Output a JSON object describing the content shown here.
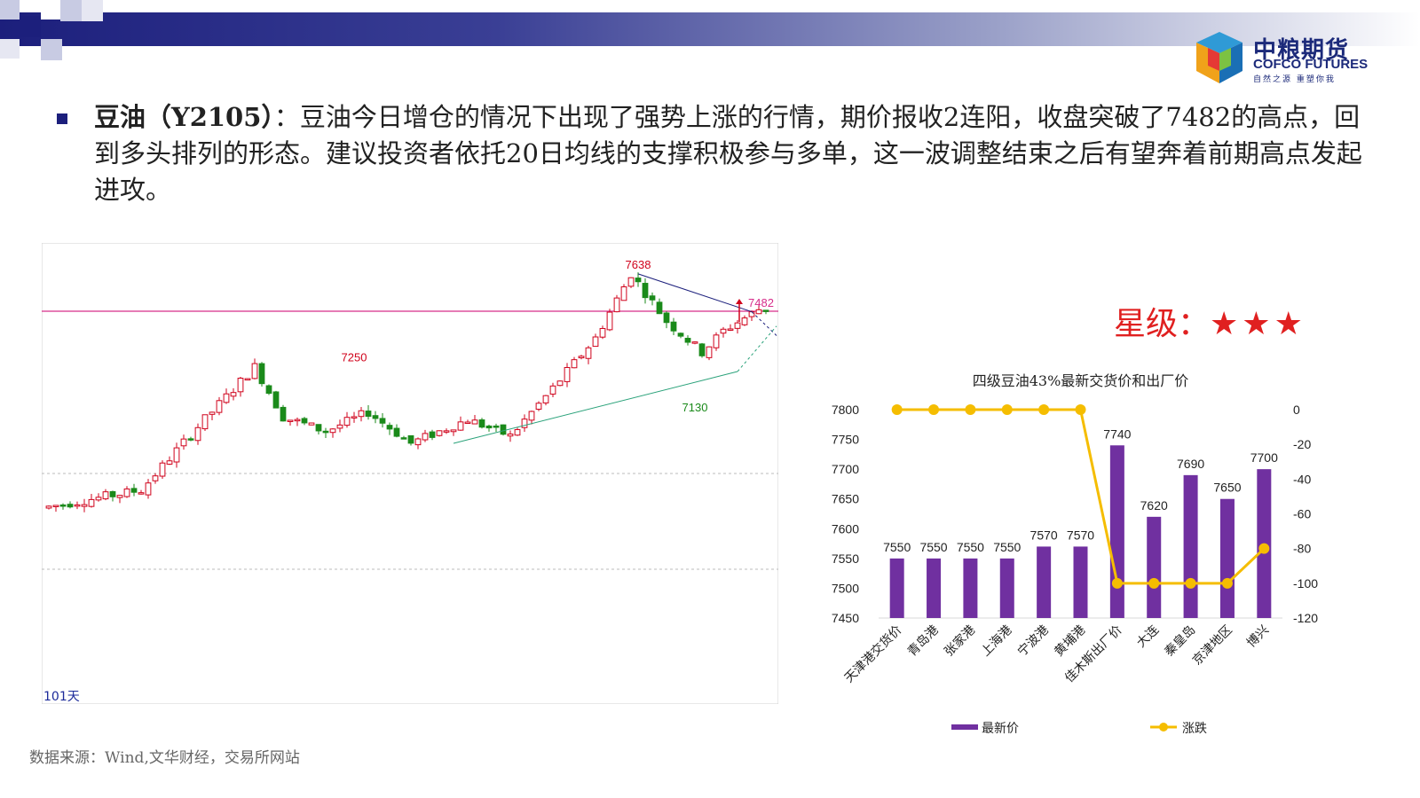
{
  "brand": {
    "name_cn": "中粮期货",
    "name_en": "COFCO FUTURES",
    "tagline": "自然之源 重塑你我"
  },
  "commentary": {
    "title": "豆油（Y2105）",
    "body": "：豆油今日增仓的情况下出现了强势上涨的行情，期价报收2连阳，收盘突破了7482的高点，回到多头排列的形态。建议投资者依托20日均线的支撑积极参与多单，这一波调整结束之后有望奔着前期高点发起进攻。"
  },
  "rating": {
    "label": "星级：",
    "stars": "★★★"
  },
  "source": "数据来源：Wind,文华财经，交易所网站",
  "colors": {
    "header": "#1c1f7c",
    "up": "#d0021b",
    "down": "#1a8a1a",
    "bar": "#7030a0",
    "line": "#f5bd00",
    "rating": "#e02020"
  },
  "chart_data": [
    {
      "type": "candlestick",
      "title": "",
      "period_label": "101天",
      "reference_line": 7482,
      "annotations": [
        {
          "label": "7638",
          "value": 7638,
          "kind": "high"
        },
        {
          "label": "7250",
          "value": 7250,
          "kind": "high"
        },
        {
          "label": "7130",
          "value": 7130,
          "kind": "low"
        },
        {
          "label": "7482",
          "value": 7482,
          "kind": "breakout"
        }
      ]
    },
    {
      "type": "bar+line",
      "title": "四级豆油43%最新交货价和出厂价",
      "categories": [
        "天津港交货价",
        "青岛港",
        "张家港",
        "上海港",
        "宁波港",
        "黄埔港",
        "佳木斯出厂价",
        "大连",
        "秦皇岛",
        "京津地区",
        "博兴"
      ],
      "series": [
        {
          "name": "最新价",
          "type": "bar",
          "axis": "left",
          "values": [
            7550,
            7550,
            7550,
            7550,
            7570,
            7570,
            7740,
            7620,
            7690,
            7650,
            7700
          ]
        },
        {
          "name": "涨跌",
          "type": "line",
          "axis": "right",
          "values": [
            0,
            0,
            0,
            0,
            0,
            0,
            -100,
            -100,
            -100,
            -100,
            -80
          ]
        }
      ],
      "y_left": {
        "min": 7450,
        "max": 7800,
        "ticks": [
          7450,
          7500,
          7550,
          7600,
          7650,
          7700,
          7750,
          7800
        ]
      },
      "y_right": {
        "min": -120,
        "max": 0,
        "ticks": [
          -120,
          -100,
          -80,
          -60,
          -40,
          -20,
          0
        ]
      },
      "legend_position": "bottom"
    }
  ]
}
